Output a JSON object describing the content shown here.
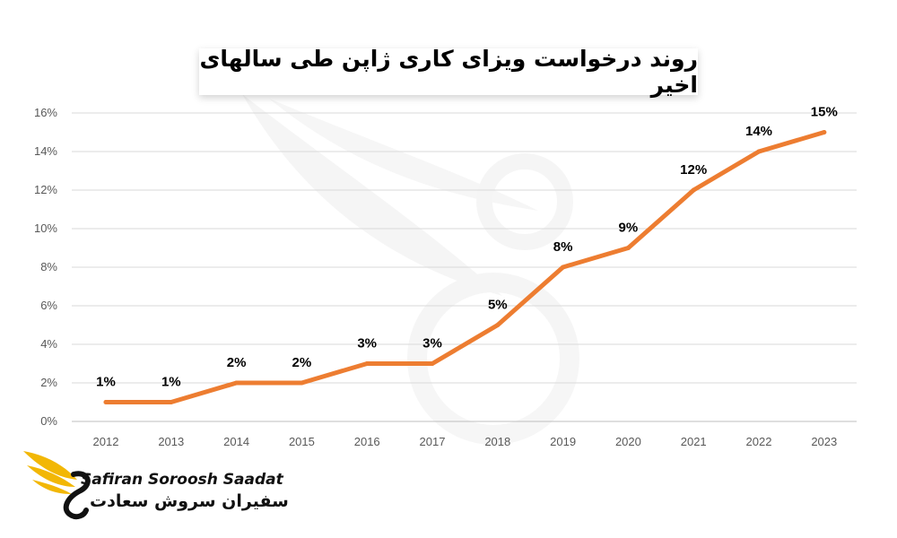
{
  "chart_data": {
    "type": "line",
    "title": "روند درخواست ویزای کاری ژاپن طی سالهای اخیر",
    "x": [
      "2012",
      "2013",
      "2014",
      "2015",
      "2016",
      "2017",
      "2018",
      "2019",
      "2020",
      "2021",
      "2022",
      "2023"
    ],
    "series": [
      {
        "values": [
          1,
          1,
          2,
          2,
          3,
          3,
          5,
          8,
          9,
          12,
          14,
          15
        ],
        "labels": [
          "1%",
          "1%",
          "2%",
          "2%",
          "3%",
          "3%",
          "5%",
          "8%",
          "9%",
          "12%",
          "14%",
          "15%"
        ],
        "color": "#ED7D31"
      }
    ],
    "ylim": [
      0,
      16
    ],
    "yticks": [
      "0%",
      "2%",
      "4%",
      "6%",
      "8%",
      "10%",
      "12%",
      "14%",
      "16%"
    ],
    "grid": true,
    "legend": "none"
  },
  "brand": {
    "name_latin": "Safiran Soroosh Saadat",
    "name_farsi": "سفیران سروش سعادت",
    "logo_icon": "bird-logo-icon",
    "logo_color": "#F2B705"
  }
}
